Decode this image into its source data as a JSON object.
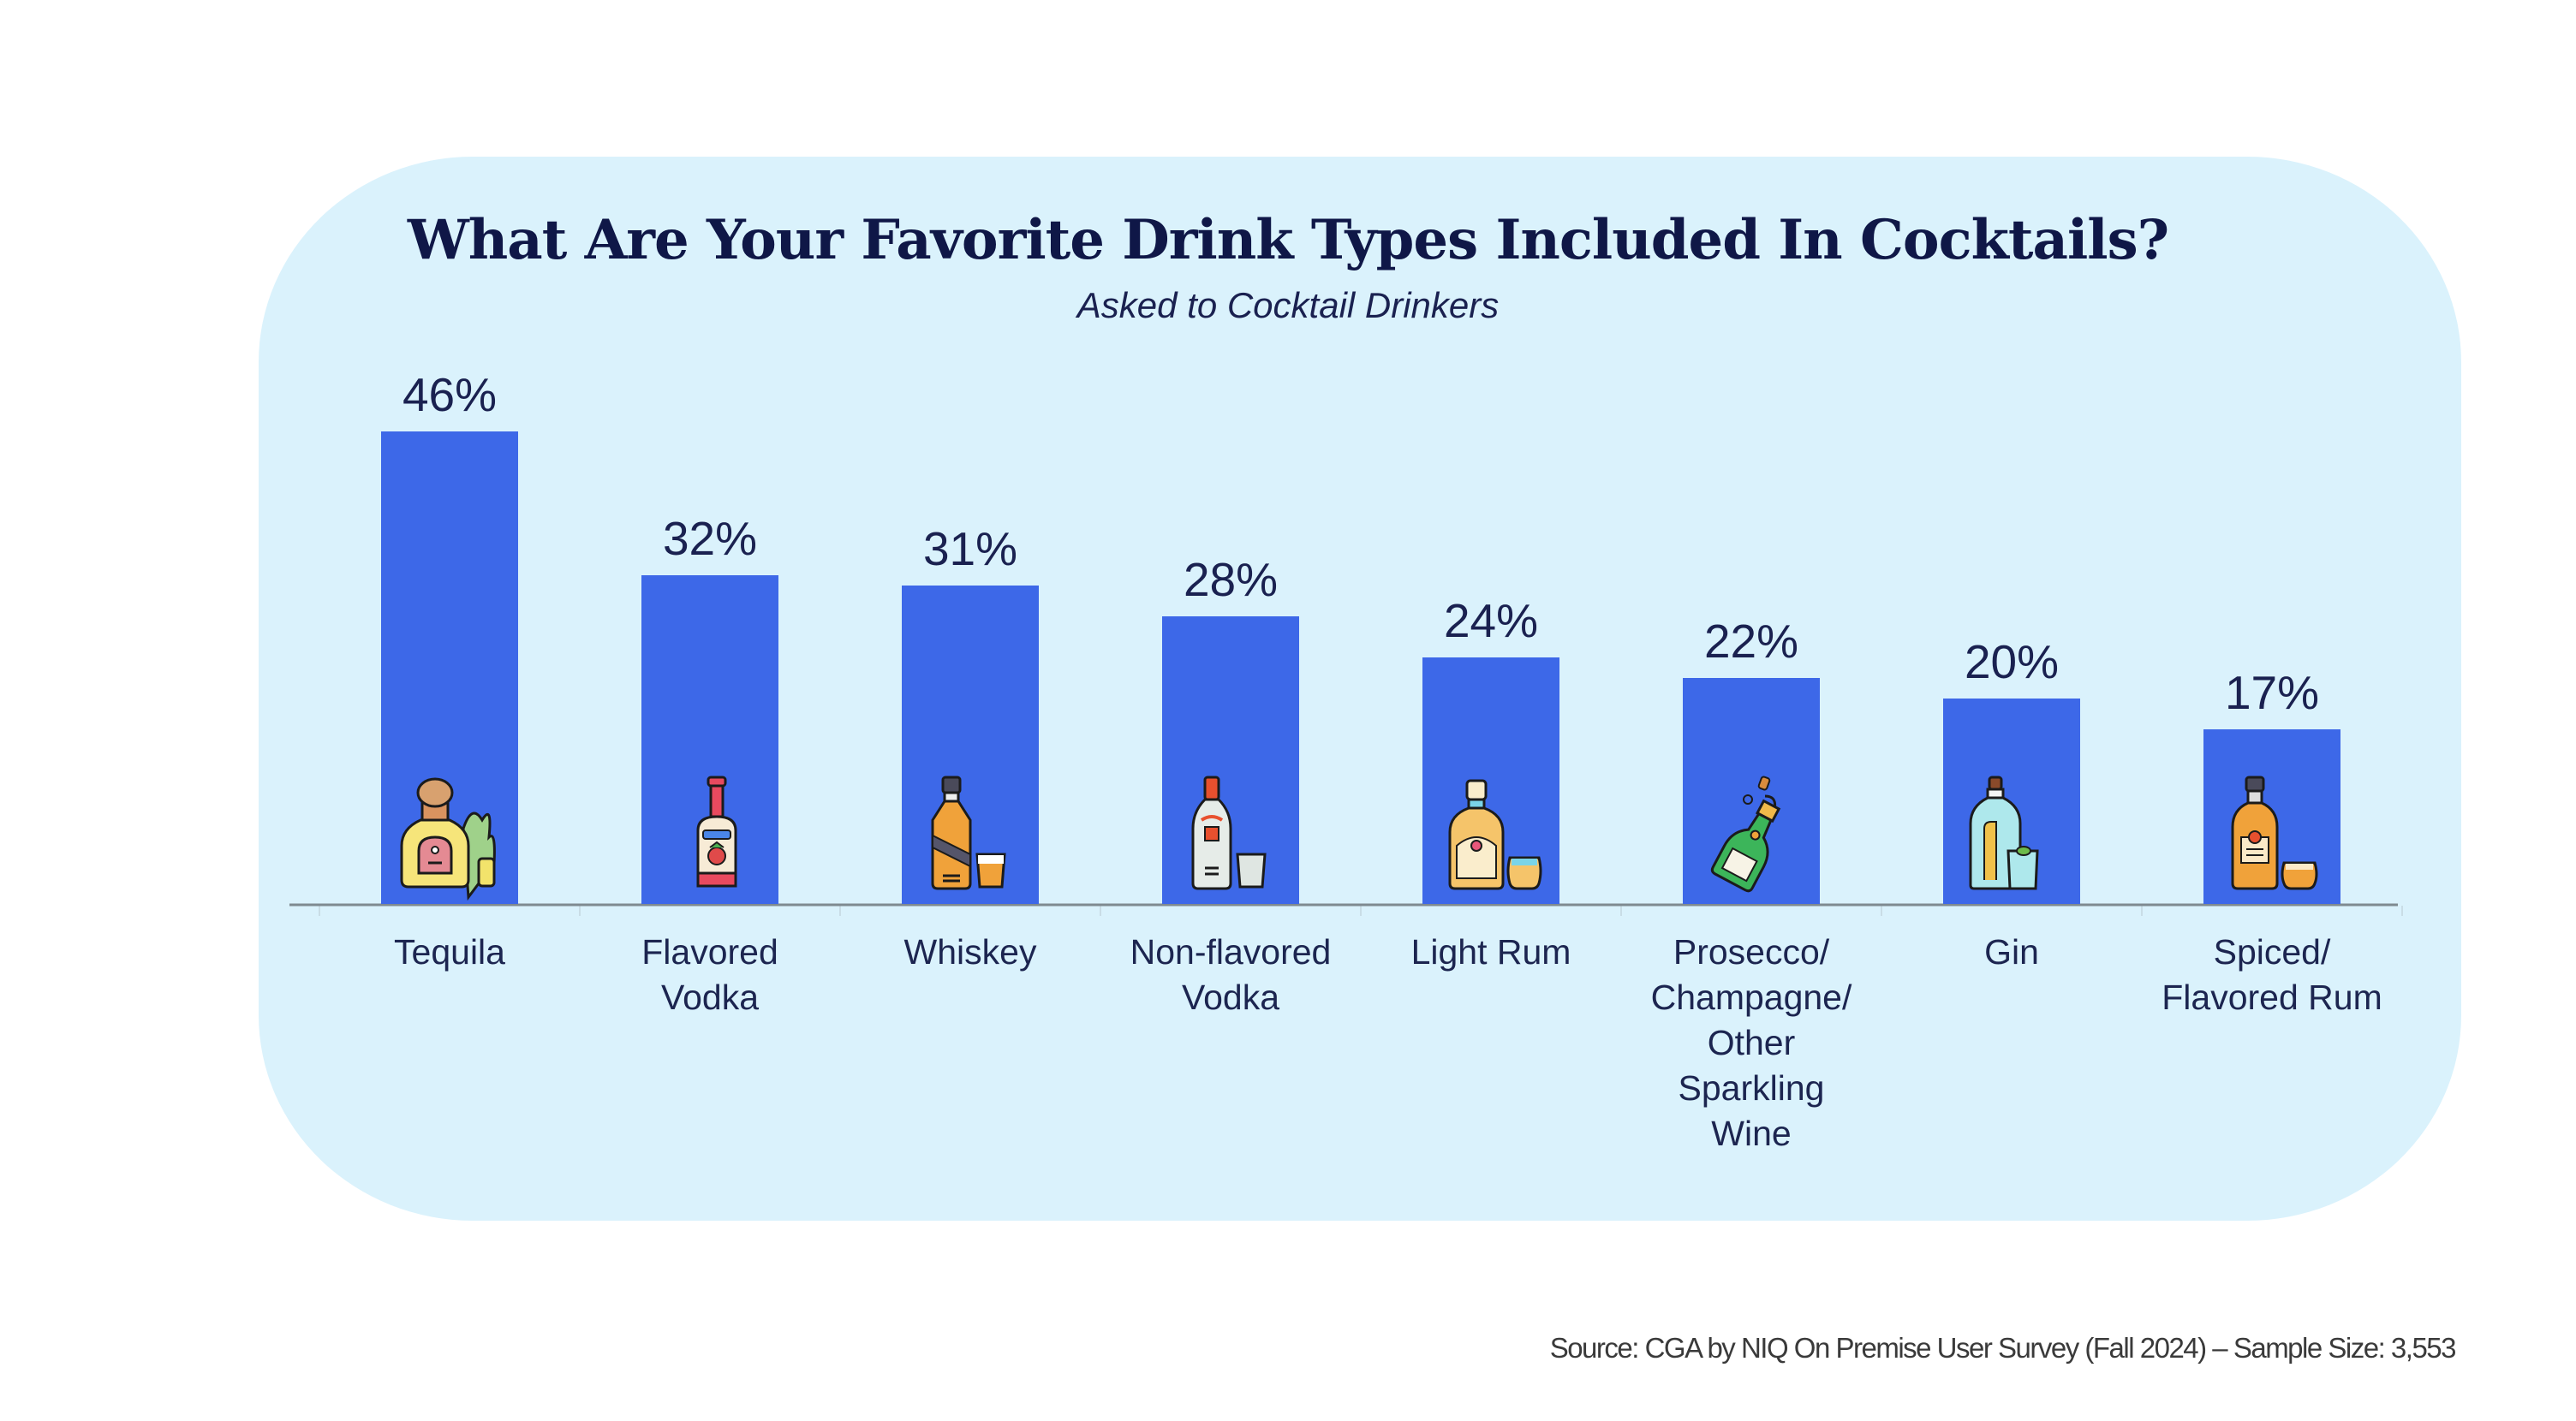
{
  "header": {
    "title": "What Are Your Favorite Drink Types Included In Cocktails?",
    "subtitle": "Asked to Cocktail Drinkers"
  },
  "footer": {
    "source": "Source: CGA by NIQ On Premise User Survey (Fall 2024) – Sample Size: 3,553"
  },
  "colors": {
    "panel_background": "#daf2fc",
    "bar": "#3d68e8",
    "text": "#1a2150",
    "axis": "#7f8a90"
  },
  "chart_data": {
    "type": "bar",
    "title": "What Are Your Favorite Drink Types Included In Cocktails?",
    "subtitle": "Asked to Cocktail Drinkers",
    "xlabel": "",
    "ylabel": "",
    "ylim": [
      0,
      50
    ],
    "grid": false,
    "legend": "none",
    "unit": "%",
    "categories": [
      "Tequila",
      "Flavored Vodka",
      "Whiskey",
      "Non-flavored Vodka",
      "Light Rum",
      "Prosecco/ Champagne/ Other Sparkling Wine",
      "Gin",
      "Spiced/ Flavored Rum"
    ],
    "category_label_lines": [
      [
        "Tequila"
      ],
      [
        "Flavored",
        "Vodka"
      ],
      [
        "Whiskey"
      ],
      [
        "Non-flavored",
        "Vodka"
      ],
      [
        "Light Rum"
      ],
      [
        "Prosecco/",
        "Champagne/",
        "Other",
        "Sparkling",
        "Wine"
      ],
      [
        "Gin"
      ],
      [
        "Spiced/",
        "Flavored Rum"
      ]
    ],
    "values": [
      46,
      32,
      31,
      28,
      24,
      22,
      20,
      17
    ],
    "data_labels": [
      "46%",
      "32%",
      "31%",
      "28%",
      "24%",
      "22%",
      "20%",
      "17%"
    ],
    "icons": [
      "tequila-bottle-icon",
      "flavored-vodka-bottle-icon",
      "whiskey-bottle-icon",
      "vodka-bottle-icon",
      "light-rum-bottle-icon",
      "champagne-bottle-icon",
      "gin-bottle-icon",
      "spiced-rum-bottle-icon"
    ]
  }
}
